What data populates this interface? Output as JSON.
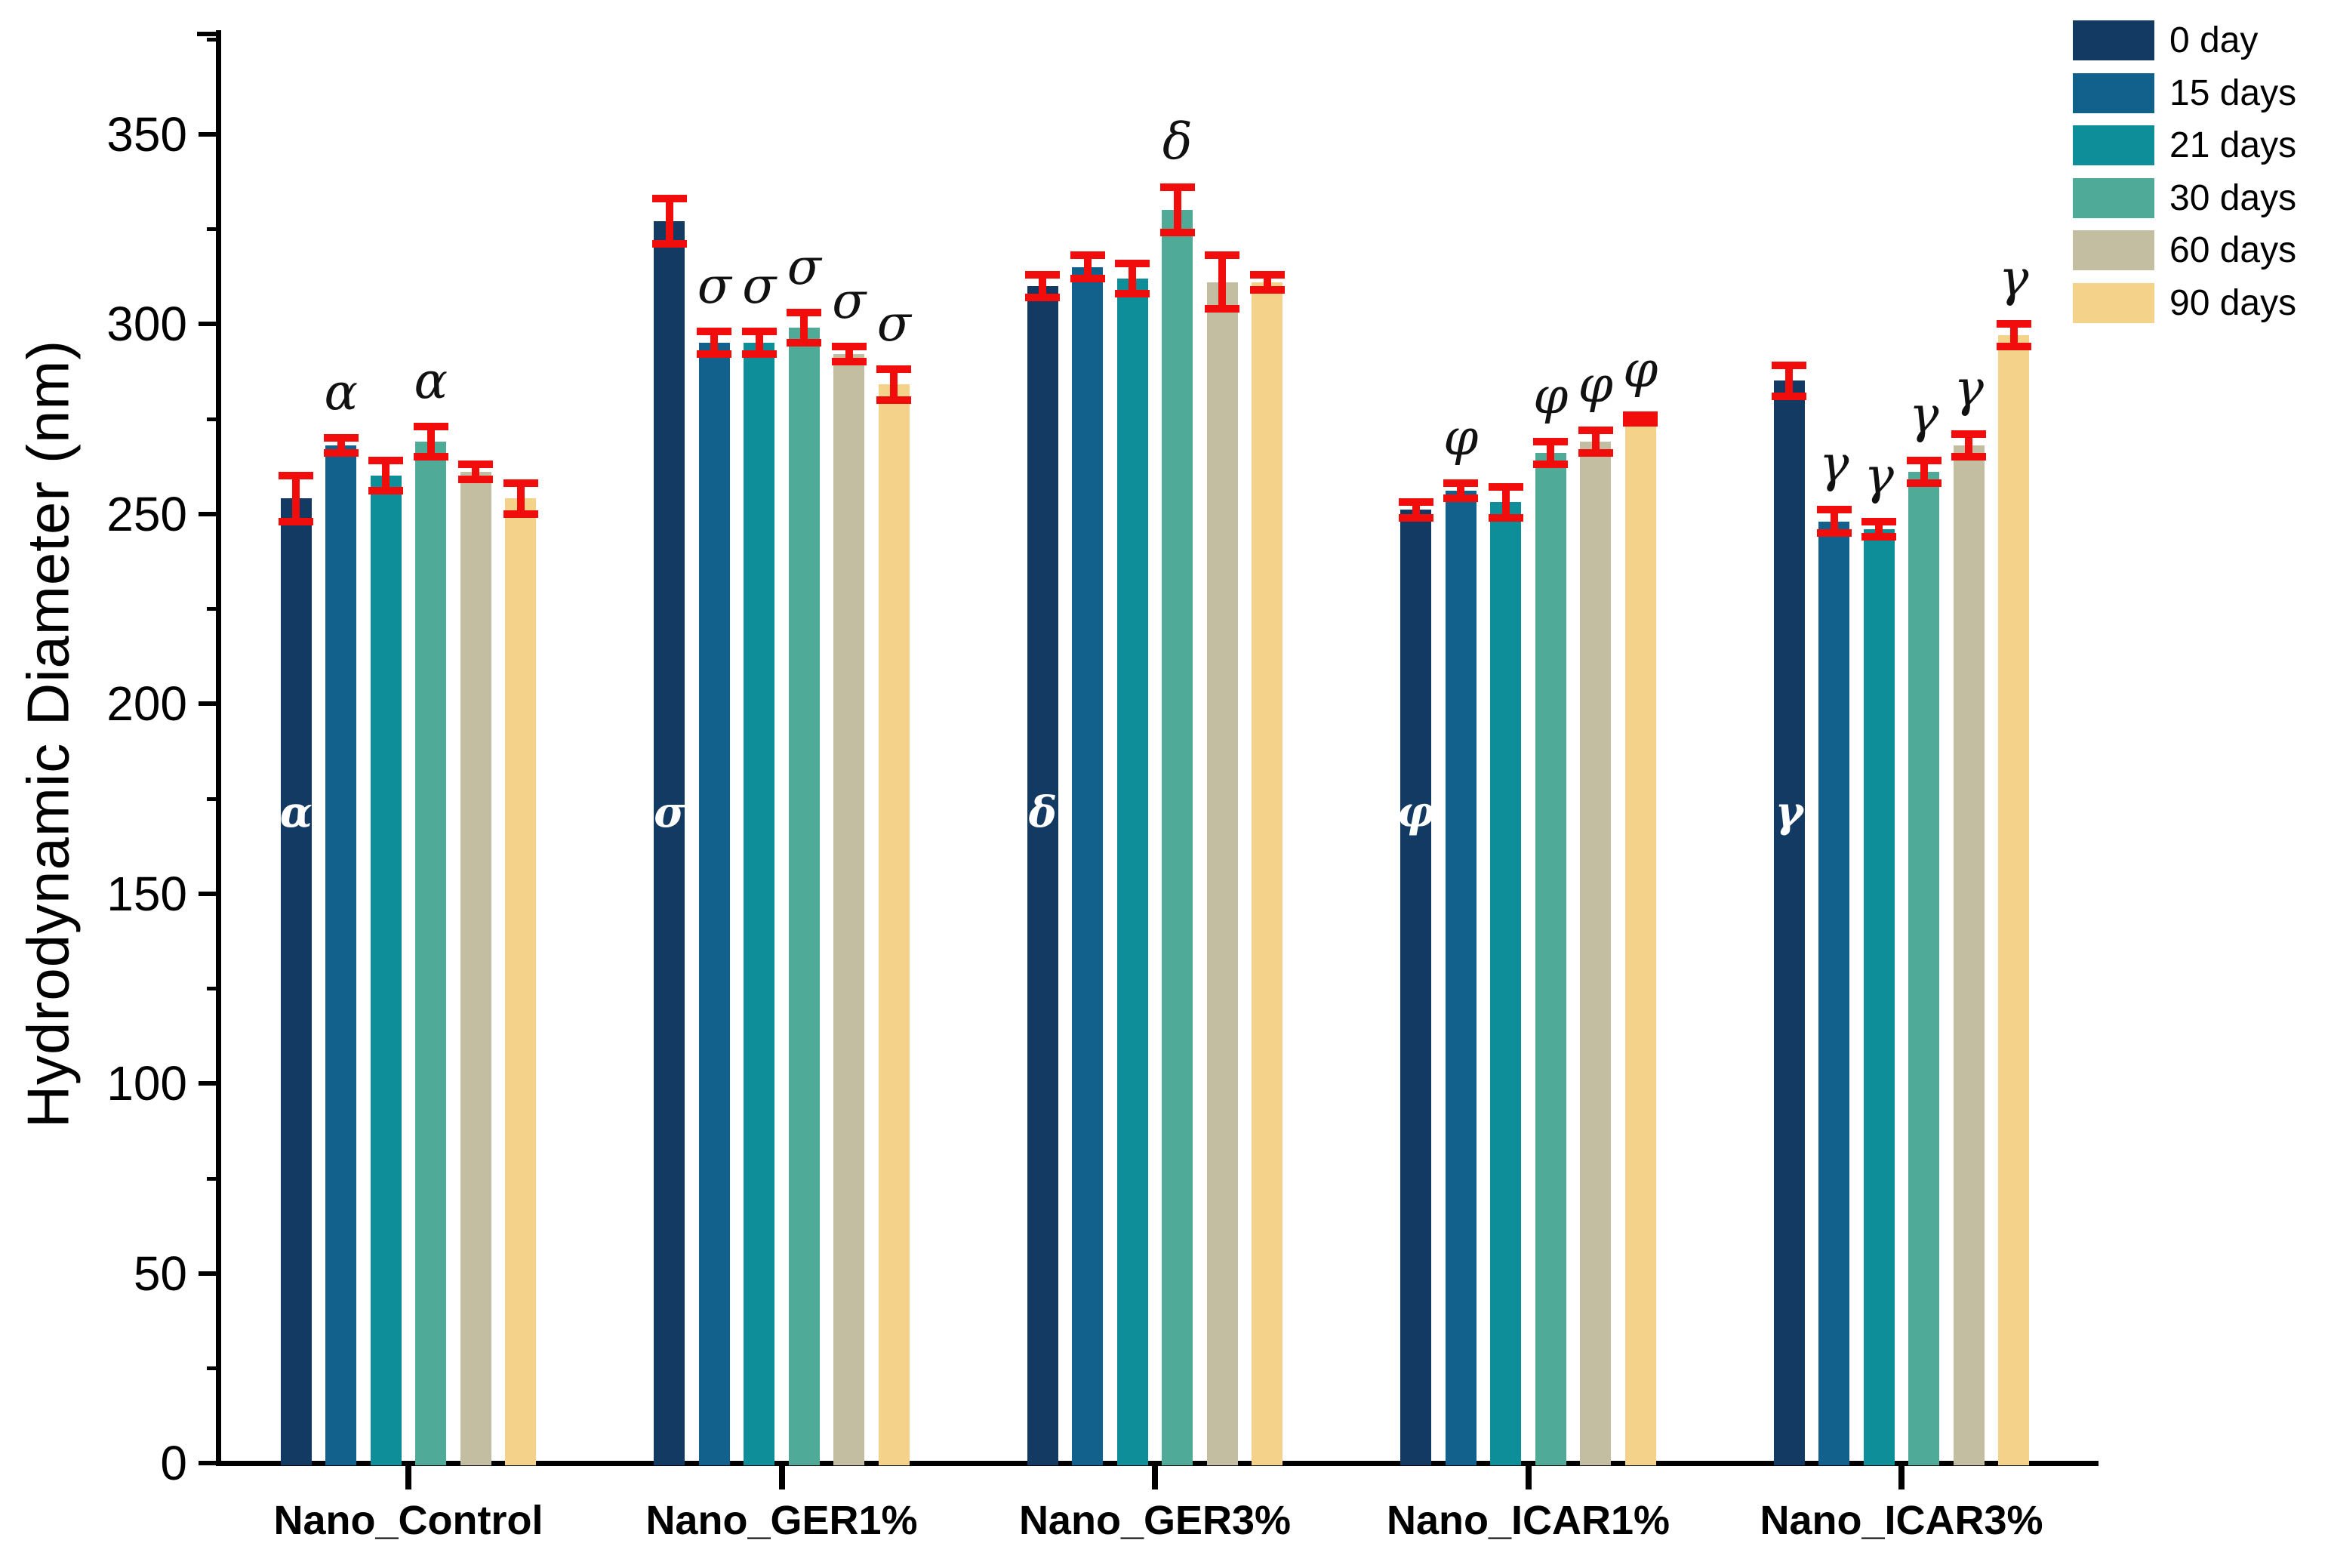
{
  "chart_data": {
    "type": "bar",
    "title": "",
    "xlabel": "",
    "ylabel": "Hydrodynamic Diameter (nm)",
    "ylim": [
      0,
      375
    ],
    "yticks": [
      0,
      50,
      100,
      150,
      200,
      250,
      300,
      350
    ],
    "yticks_minor": [
      25,
      75,
      125,
      175,
      225,
      275,
      325,
      375
    ],
    "grid": false,
    "legend_position": "top-right",
    "background_color": "#ffffff",
    "axis_color": "#000000",
    "error_bar_color": "#f20d0d",
    "categories": [
      "Nano_Control",
      "Nano_GER1%",
      "Nano_GER3%",
      "Nano_ICAR1%",
      "Nano_ICAR3%"
    ],
    "series": [
      {
        "name": "0 day",
        "color": "#133a63",
        "values": [
          254,
          327,
          310,
          251,
          285
        ],
        "errors": [
          6,
          6,
          3,
          2,
          4
        ],
        "letters_above": [
          "",
          "",
          "",
          "",
          ""
        ]
      },
      {
        "name": "15 days",
        "color": "#11618c",
        "values": [
          268,
          295,
          315,
          256,
          248
        ],
        "errors": [
          2,
          3,
          3,
          2,
          3
        ],
        "letters_above": [
          "α",
          "σ",
          "",
          "φ",
          "γ"
        ]
      },
      {
        "name": "21 days",
        "color": "#0d8e98",
        "values": [
          260,
          295,
          312,
          253,
          246
        ],
        "errors": [
          4,
          3,
          4,
          4,
          2
        ],
        "letters_above": [
          "",
          "σ",
          "",
          "",
          "γ"
        ]
      },
      {
        "name": "30 days",
        "color": "#4faa97",
        "values": [
          269,
          299,
          330,
          266,
          261
        ],
        "errors": [
          4,
          4,
          6,
          3,
          3
        ],
        "letters_above": [
          "α",
          "σ",
          "δ",
          "φ",
          "γ"
        ]
      },
      {
        "name": "60 days",
        "color": "#c3bda1",
        "values": [
          261,
          292,
          311,
          269,
          268
        ],
        "errors": [
          2,
          2,
          7,
          3,
          3
        ],
        "letters_above": [
          "",
          "σ",
          "",
          "φ",
          "γ"
        ]
      },
      {
        "name": "90 days",
        "color": "#f5d289",
        "values": [
          254,
          284,
          311,
          275,
          297
        ],
        "errors": [
          4,
          4,
          2,
          1,
          3
        ],
        "letters_above": [
          "",
          "σ",
          "",
          "φ",
          "γ"
        ]
      }
    ],
    "inside_letters": [
      "α",
      "σ",
      "δ",
      "φ",
      "γ"
    ],
    "inside_letters_note": "white Greek letter printed inside the 0-day bar of each group"
  }
}
